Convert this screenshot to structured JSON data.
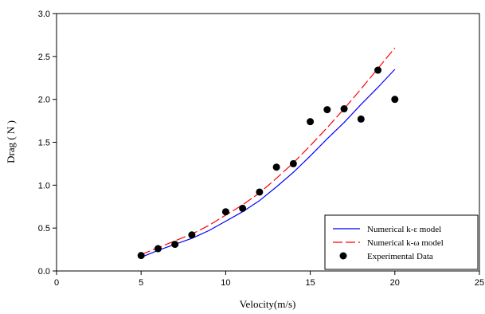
{
  "chart_data": {
    "type": "line",
    "xlabel": "Velocity(m/s)",
    "ylabel": "Drag ( N )",
    "xlim": [
      0,
      25
    ],
    "ylim": [
      0,
      3.0
    ],
    "x_ticks": [
      "0",
      "5",
      "10",
      "15",
      "20",
      "25"
    ],
    "y_ticks": [
      "0.0",
      "0.5",
      "1.0",
      "1.5",
      "2.0",
      "2.5",
      "3.0"
    ],
    "grid": false,
    "legend_position": "bottom-right",
    "series": [
      {
        "name": "Numerical k-ε model",
        "style": "line",
        "color": "#0000ff",
        "x": [
          5,
          6,
          7,
          8,
          9,
          10,
          11,
          12,
          13,
          14,
          15,
          16,
          17,
          18,
          19,
          20
        ],
        "y": [
          0.16,
          0.24,
          0.31,
          0.38,
          0.47,
          0.58,
          0.69,
          0.82,
          0.98,
          1.15,
          1.34,
          1.54,
          1.73,
          1.94,
          2.14,
          2.35
        ]
      },
      {
        "name": "Numerical k-ω model",
        "style": "dashed",
        "color": "#ff0000",
        "x": [
          5,
          6,
          7,
          8,
          9,
          10,
          11,
          12,
          13,
          14,
          15,
          16,
          17,
          18,
          19,
          20
        ],
        "y": [
          0.19,
          0.27,
          0.35,
          0.43,
          0.53,
          0.65,
          0.77,
          0.91,
          1.08,
          1.26,
          1.46,
          1.67,
          1.89,
          2.12,
          2.36,
          2.6
        ]
      },
      {
        "name": "Experimental Data",
        "style": "markers",
        "color": "#000000",
        "x": [
          5,
          6,
          7,
          8,
          10,
          11,
          12,
          13,
          14,
          15,
          16,
          17,
          18,
          19,
          20
        ],
        "y": [
          0.18,
          0.26,
          0.31,
          0.42,
          0.69,
          0.73,
          0.92,
          1.21,
          1.25,
          1.74,
          1.88,
          1.89,
          1.77,
          2.34,
          2.0
        ]
      }
    ]
  }
}
